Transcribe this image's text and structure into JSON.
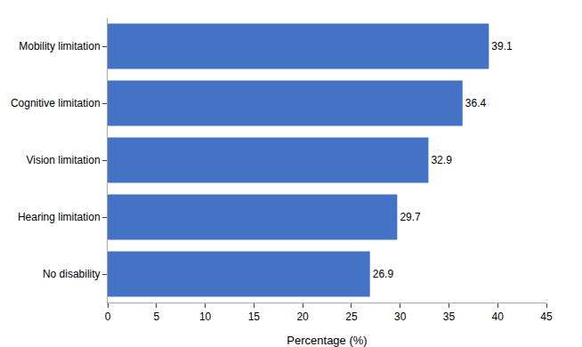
{
  "chart_data": {
    "type": "bar",
    "orientation": "horizontal",
    "categories": [
      "No disability",
      "Hearing limitation",
      "Vision limitation",
      "Cognitive limitation",
      "Mobility limitation"
    ],
    "values": [
      26.9,
      29.7,
      32.9,
      36.4,
      39.1
    ],
    "color": "#4472C4",
    "xlabel": "Percentage (%)",
    "xlim": [
      0,
      45
    ],
    "xticks": [
      0,
      5,
      10,
      15,
      20,
      25,
      30,
      35,
      40,
      45
    ],
    "grid": false,
    "data_labels": true
  }
}
